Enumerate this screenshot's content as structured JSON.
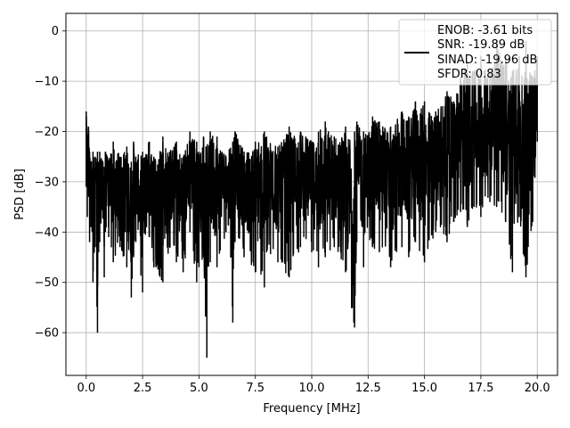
{
  "chart_data": {
    "type": "line",
    "title": "",
    "xlabel": "Frequency [MHz]",
    "ylabel": "PSD [dB]",
    "xlim": [
      -0.9,
      20.9
    ],
    "ylim": [
      -68.5,
      3.5
    ],
    "xticks": [
      0.0,
      2.5,
      5.0,
      7.5,
      10.0,
      12.5,
      15.0,
      17.5,
      20.0
    ],
    "xtick_labels": [
      "0.0",
      "2.5",
      "5.0",
      "7.5",
      "10.0",
      "12.5",
      "15.0",
      "17.5",
      "20.0"
    ],
    "yticks": [
      0,
      -10,
      -20,
      -30,
      -40,
      -50,
      -60
    ],
    "ytick_labels": [
      "0",
      "−10",
      "−20",
      "−30",
      "−40",
      "−50",
      "−60"
    ],
    "grid": true,
    "legend_placement": "top-right",
    "legend_lines": [
      "ENOB: -3.61 bits",
      "SNR: -19.89 dB",
      "SINAD: -19.96 dB",
      "SFDR: 0.83"
    ],
    "series_color": "#000000",
    "series": [
      {
        "name": "",
        "x": [
          0.0,
          0.05,
          0.1,
          0.15,
          0.2,
          0.3,
          0.4,
          0.5,
          0.55,
          0.6,
          0.8,
          0.85,
          1.0,
          1.2,
          1.5,
          1.8,
          2.0,
          2.1,
          2.2,
          2.5,
          2.8,
          3.0,
          3.4,
          3.7,
          4.0,
          4.3,
          4.6,
          4.9,
          5.0,
          5.2,
          5.35,
          5.5,
          5.8,
          6.2,
          6.5,
          6.6,
          7.0,
          7.5,
          7.9,
          8.0,
          8.5,
          9.0,
          9.5,
          10.0,
          10.3,
          10.6,
          11.0,
          11.5,
          11.9,
          12.0,
          12.3,
          12.7,
          13.0,
          13.5,
          14.0,
          14.3,
          14.6,
          15.0,
          15.5,
          16.0,
          16.3,
          16.6,
          16.9,
          17.2,
          17.5,
          17.9,
          18.2,
          18.6,
          18.9,
          19.2,
          19.5,
          19.8,
          20.0
        ],
        "max": [
          -16,
          -22,
          -19,
          -24,
          -27,
          -24,
          -25,
          -24,
          -26,
          -24,
          -27,
          -24,
          -26,
          -22,
          -25,
          -23,
          -26,
          -22,
          -25,
          -24,
          -22,
          -25,
          -21,
          -24,
          -22,
          -25,
          -20,
          -22,
          -24,
          -21,
          -23,
          -20,
          -21,
          -25,
          -22,
          -20,
          -24,
          -22,
          -20,
          -21,
          -23,
          -19,
          -20,
          -22,
          -20,
          -18,
          -21,
          -19,
          -20,
          -18,
          -20,
          -17,
          -18,
          -19,
          -16,
          -17,
          -14,
          -14,
          -16,
          -12,
          -14,
          -9,
          -6,
          -8,
          -5,
          -8,
          -2,
          -5,
          -8,
          -5,
          -2,
          -9,
          -5
        ],
        "min": [
          -31,
          -37,
          -33,
          -42,
          -39,
          -50,
          -43,
          -60,
          -44,
          -42,
          -49,
          -40,
          -41,
          -46,
          -43,
          -47,
          -53,
          -45,
          -42,
          -52,
          -41,
          -47,
          -50,
          -43,
          -46,
          -48,
          -40,
          -50,
          -47,
          -45,
          -65,
          -46,
          -47,
          -40,
          -58,
          -42,
          -45,
          -48,
          -51,
          -44,
          -46,
          -49,
          -43,
          -44,
          -47,
          -45,
          -43,
          -48,
          -59,
          -42,
          -47,
          -43,
          -44,
          -47,
          -43,
          -45,
          -42,
          -46,
          -40,
          -42,
          -38,
          -36,
          -39,
          -35,
          -37,
          -34,
          -35,
          -38,
          -48,
          -37,
          -49,
          -38,
          -22
        ]
      }
    ]
  }
}
